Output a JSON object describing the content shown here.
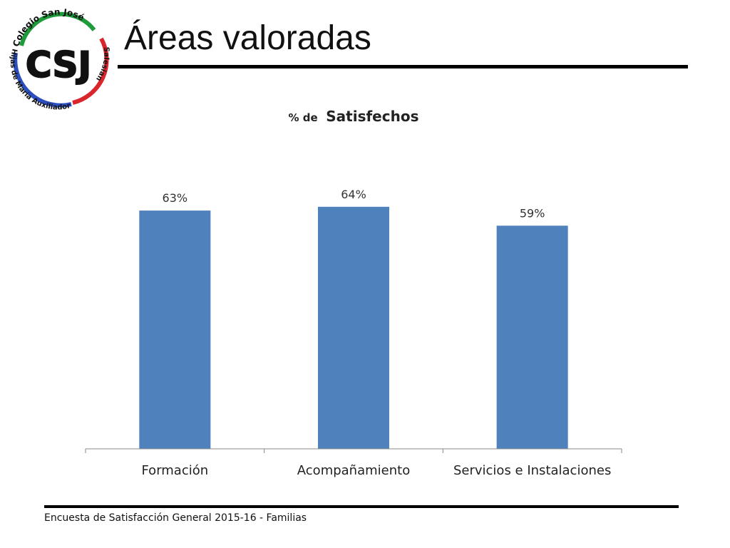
{
  "slide": {
    "title": "Áreas valoradas",
    "footer": "Encuesta  de Satisfacción General 2015-16 - Familias"
  },
  "logo": {
    "monogram": "CSJ",
    "arc_top": "Colegio San José",
    "arc_left": "Hijas de María Auxiliadora",
    "arc_right": "Salesianas",
    "colors": {
      "green": "#1e9b3a",
      "red": "#d9262c",
      "blue": "#2b4fc0",
      "black": "#111111"
    }
  },
  "chart_data": {
    "type": "bar",
    "title_prefix": "% de",
    "title_main": "Satisfechos",
    "categories": [
      "Formación",
      "Acompañamiento",
      "Servicios e Instalaciones"
    ],
    "values": [
      63,
      64,
      59
    ],
    "data_labels": [
      "63%",
      "64%",
      "59%"
    ],
    "ylim": [
      0,
      70
    ],
    "grid": false,
    "legend": "none",
    "bar_color": "#4f81bd"
  }
}
